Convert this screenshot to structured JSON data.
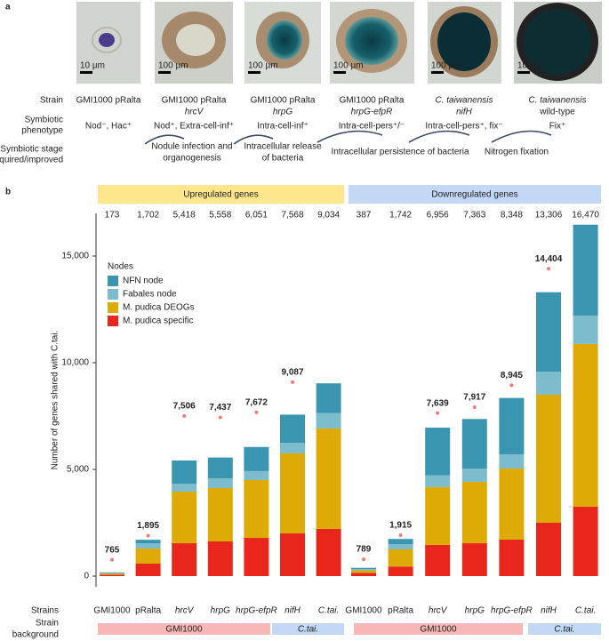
{
  "panel_a": {
    "label": "a",
    "scale_bars": [
      "10 µm",
      "100 µm",
      "100 µm",
      "100 µm",
      "100 µm",
      "100 µm"
    ],
    "row_labels": {
      "strain": [
        "Strain"
      ],
      "phenotype": [
        "Symbiotic",
        "phenotype"
      ],
      "stage": [
        "Symbiotic stage",
        "acquired/improved"
      ]
    },
    "strains": [
      [
        "GMI1000 pRalta"
      ],
      [
        "GMI1000 pRalta",
        "hrcV"
      ],
      [
        "GMI1000 pRalta",
        "hrpG"
      ],
      [
        "GMI1000 pRalta",
        "hrpG-efpR"
      ],
      [
        "C. taiwanensis",
        "nifH"
      ],
      [
        "C. taiwanensis",
        "wild-type"
      ]
    ],
    "phenotypes": [
      "Nod⁻, Hac⁺",
      "Nod⁺, Extra-cell-inf⁺",
      "Intra-cell-inf⁺",
      "Intra-cell-pers⁺/⁻",
      "Intra-cell-pers⁺, fix⁻",
      "Fix⁺"
    ],
    "stages": [
      [
        "Nodule infection and",
        "organogenesis"
      ],
      [
        "Intracellular release",
        "of bacteria"
      ],
      [
        "Intracellular persistence of bacteria"
      ],
      [
        "Nitrogen fixation"
      ]
    ]
  },
  "chart_data": {
    "type": "bar",
    "stacked": true,
    "panel_label": "b",
    "y_label": "Number of genes shared with C.tai.",
    "groups": [
      {
        "label": "Upregulated genes",
        "color": "#fde68c"
      },
      {
        "label": "Downregulated genes",
        "color": "#c2d8f5"
      }
    ],
    "categories": [
      "GMI1000",
      "pRalta",
      "hrcV",
      "hrpG",
      "hrpG-efpR",
      "nifH",
      "C.tai.",
      "GMI1000",
      "pRalta",
      "hrcV",
      "hrpG",
      "hrpG-efpR",
      "nifH",
      "C.tai."
    ],
    "totals": [
      "173",
      "1,702",
      "5,418",
      "5,558",
      "6,051",
      "7,568",
      "9,034",
      "387",
      "1,742",
      "6,956",
      "7,363",
      "8,348",
      "13,306",
      "16,470"
    ],
    "series": [
      {
        "name": "M. pudica specific",
        "color": "#e8261b",
        "values": [
          60,
          583,
          1540,
          1625,
          1790,
          2000,
          2210,
          150,
          450,
          1460,
          1540,
          1710,
          2500,
          3250
        ]
      },
      {
        "name": "M. pudica DEOGs",
        "color": "#deab06",
        "values": [
          50,
          707,
          2420,
          2500,
          2710,
          3750,
          4710,
          120,
          800,
          2710,
          2880,
          3330,
          6000,
          7630
        ]
      },
      {
        "name": "Fabales node",
        "color": "#7dbccc",
        "values": [
          30,
          250,
          370,
          455,
          420,
          500,
          720,
          60,
          250,
          550,
          620,
          670,
          1080,
          1330
        ]
      },
      {
        "name": "NFN node",
        "color": "#3a95b0",
        "values": [
          33,
          162,
          1088,
          978,
          1131,
          1318,
          1394,
          57,
          242,
          2236,
          2323,
          2638,
          3726,
          4260
        ]
      }
    ],
    "markers": {
      "color": "#f07a78",
      "values": [
        765,
        1895,
        7506,
        7437,
        7672,
        9087,
        null,
        789,
        1915,
        7639,
        7917,
        8945,
        14404,
        null
      ],
      "value_labels": [
        "765",
        "1,895",
        "7,506",
        "7,437",
        "7,672",
        "9,087",
        null,
        "789",
        "1,915",
        "7,639",
        "7,917",
        "8,945",
        "14,404",
        null
      ]
    },
    "legend_title": "Nodes",
    "ylim": [
      -500,
      16900
    ],
    "yticks": [
      0,
      {
        "value": 5000,
        "label": "5,000"
      },
      {
        "value": 10000,
        "label": "10,000"
      },
      {
        "value": 15000,
        "label": "15,000"
      }
    ],
    "x_label": "Strains",
    "background_label": [
      "Strain",
      "background"
    ],
    "backgrounds": [
      {
        "label": "GMI1000",
        "color": "#f7b7b7"
      },
      {
        "label": "C.tai.",
        "color": "#c2d8f5"
      },
      {
        "label": "GMI1000",
        "color": "#f7b7b7"
      },
      {
        "label": "C.tai.",
        "color": "#c2d8f5"
      }
    ]
  }
}
